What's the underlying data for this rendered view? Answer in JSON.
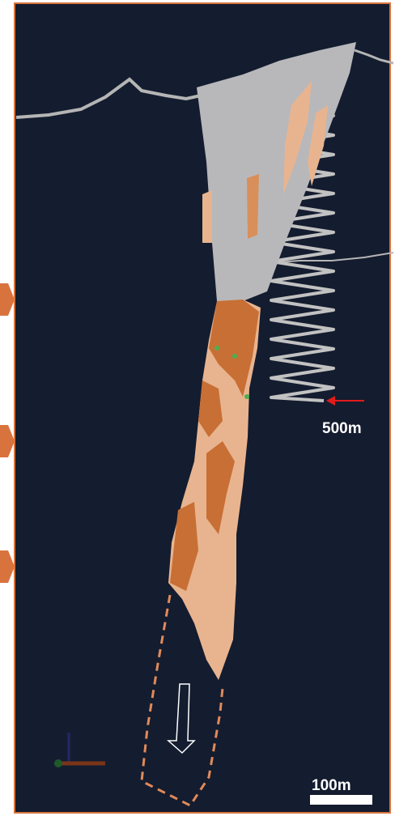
{
  "labels": {
    "depth": "500m",
    "scale": "100m"
  }
}
